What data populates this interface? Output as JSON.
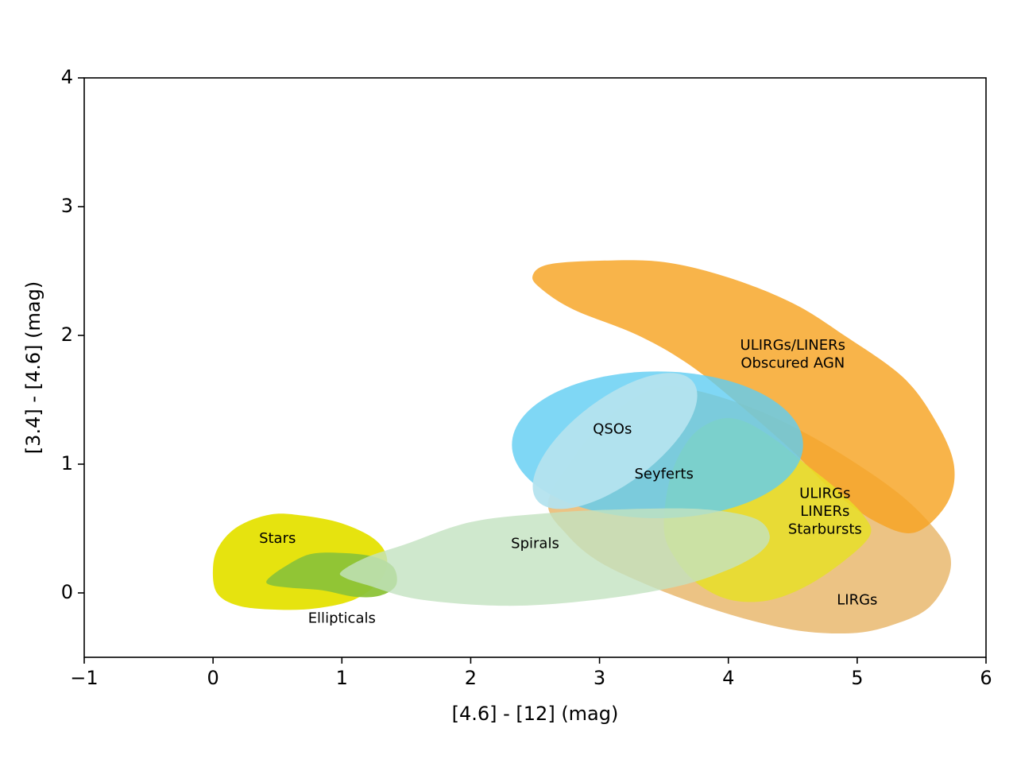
{
  "chart_data": {
    "type": "area",
    "xlabel": "[4.6] - [12] (mag)",
    "ylabel": "[3.4] - [4.6] (mag)",
    "xlim": [
      -1,
      6
    ],
    "ylim": [
      -0.5,
      4
    ],
    "xticks": [
      -1,
      0,
      1,
      2,
      3,
      4,
      5,
      6
    ],
    "yticks": [
      0,
      1,
      2,
      3,
      4
    ],
    "grid": false,
    "regions": [
      {
        "name": "LIRGs",
        "color": "#e9b86e",
        "opacity": 0.85,
        "labels": [
          {
            "text": "LIRGs",
            "x": 5.0,
            "y": -0.06
          }
        ],
        "outline": [
          [
            2.6,
            0.7
          ],
          [
            2.8,
            1.05
          ],
          [
            3.0,
            1.3
          ],
          [
            3.25,
            1.5
          ],
          [
            3.5,
            1.6
          ],
          [
            3.8,
            1.56
          ],
          [
            4.2,
            1.43
          ],
          [
            4.6,
            1.24
          ],
          [
            5.0,
            1.0
          ],
          [
            5.35,
            0.75
          ],
          [
            5.6,
            0.5
          ],
          [
            5.72,
            0.3
          ],
          [
            5.7,
            0.1
          ],
          [
            5.55,
            -0.12
          ],
          [
            5.3,
            -0.24
          ],
          [
            5.0,
            -0.31
          ],
          [
            4.6,
            -0.3
          ],
          [
            4.2,
            -0.22
          ],
          [
            3.8,
            -0.1
          ],
          [
            3.4,
            0.05
          ],
          [
            3.0,
            0.24
          ],
          [
            2.75,
            0.45
          ]
        ]
      },
      {
        "name": "ULIRGs/LINERs Obscured AGN",
        "color": "#f7a422",
        "opacity": 0.82,
        "labels": [
          {
            "text": "ULIRGs/LINERs",
            "x": 4.5,
            "y": 1.92
          },
          {
            "text": "Obscured AGN",
            "x": 4.5,
            "y": 1.78
          }
        ],
        "outline": [
          [
            2.48,
            2.46
          ],
          [
            2.6,
            2.55
          ],
          [
            3.0,
            2.58
          ],
          [
            3.5,
            2.57
          ],
          [
            4.0,
            2.45
          ],
          [
            4.5,
            2.25
          ],
          [
            4.9,
            2.0
          ],
          [
            5.35,
            1.68
          ],
          [
            5.6,
            1.35
          ],
          [
            5.75,
            1.0
          ],
          [
            5.7,
            0.7
          ],
          [
            5.45,
            0.47
          ],
          [
            5.15,
            0.55
          ],
          [
            4.8,
            0.8
          ],
          [
            4.5,
            1.1
          ],
          [
            4.1,
            1.45
          ],
          [
            3.7,
            1.77
          ],
          [
            3.3,
            2.0
          ],
          [
            2.8,
            2.2
          ],
          [
            2.55,
            2.36
          ]
        ]
      },
      {
        "name": "ULIRGs LINERs Starbursts",
        "color": "#e8df27",
        "opacity": 0.85,
        "labels": [
          {
            "text": "ULIRGs",
            "x": 4.75,
            "y": 0.77
          },
          {
            "text": "LINERs",
            "x": 4.75,
            "y": 0.63
          },
          {
            "text": "Starbursts",
            "x": 4.75,
            "y": 0.49
          }
        ],
        "outline": [
          [
            3.5,
            0.5
          ],
          [
            3.55,
            0.9
          ],
          [
            3.7,
            1.2
          ],
          [
            3.9,
            1.34
          ],
          [
            4.1,
            1.34
          ],
          [
            4.35,
            1.2
          ],
          [
            4.6,
            1.0
          ],
          [
            4.85,
            0.8
          ],
          [
            5.05,
            0.6
          ],
          [
            5.1,
            0.45
          ],
          [
            4.9,
            0.25
          ],
          [
            4.6,
            0.05
          ],
          [
            4.3,
            -0.06
          ],
          [
            4.0,
            -0.05
          ],
          [
            3.75,
            0.08
          ],
          [
            3.58,
            0.28
          ]
        ]
      },
      {
        "name": "Seyferts",
        "color": "#5fcdf2",
        "opacity": 0.8,
        "labels": [
          {
            "text": "Seyferts",
            "x": 3.5,
            "y": 0.92
          }
        ],
        "ellipse": {
          "cx": 3.45,
          "cy": 1.15,
          "rx": 1.13,
          "ry": 0.57
        }
      },
      {
        "name": "QSOs",
        "color": "#b4e3ee",
        "opacity": 0.95,
        "labels": [
          {
            "text": "QSOs",
            "x": 3.1,
            "y": 1.27
          }
        ],
        "ellipse": {
          "cx": 3.12,
          "cy": 1.18,
          "rx": 0.76,
          "ry": 0.33,
          "angle_deg": 37
        }
      },
      {
        "name": "Stars",
        "color": "#e6e30f",
        "opacity": 1.0,
        "labels": [
          {
            "text": "Stars",
            "x": 0.5,
            "y": 0.42
          }
        ],
        "outline": [
          [
            0.0,
            0.2
          ],
          [
            0.05,
            0.37
          ],
          [
            0.2,
            0.52
          ],
          [
            0.45,
            0.61
          ],
          [
            0.7,
            0.6
          ],
          [
            1.0,
            0.54
          ],
          [
            1.25,
            0.42
          ],
          [
            1.35,
            0.27
          ],
          [
            1.3,
            0.1
          ],
          [
            1.1,
            -0.05
          ],
          [
            0.8,
            -0.12
          ],
          [
            0.5,
            -0.13
          ],
          [
            0.2,
            -0.1
          ],
          [
            0.03,
            0.0
          ]
        ]
      },
      {
        "name": "Ellipticals",
        "color": "#8cc338",
        "opacity": 0.95,
        "labels": [
          {
            "text": "Ellipticals",
            "x": 1.0,
            "y": -0.2
          }
        ],
        "outline": [
          [
            0.42,
            0.1
          ],
          [
            0.55,
            0.2
          ],
          [
            0.75,
            0.3
          ],
          [
            1.0,
            0.31
          ],
          [
            1.25,
            0.28
          ],
          [
            1.4,
            0.2
          ],
          [
            1.42,
            0.06
          ],
          [
            1.3,
            -0.02
          ],
          [
            1.1,
            -0.03
          ],
          [
            0.85,
            0.02
          ],
          [
            0.6,
            0.04
          ],
          [
            0.45,
            0.06
          ]
        ]
      },
      {
        "name": "Spirals",
        "color": "#c3e2c1",
        "opacity": 0.8,
        "labels": [
          {
            "text": "Spirals",
            "x": 2.5,
            "y": 0.38
          }
        ],
        "outline": [
          [
            1.0,
            0.17
          ],
          [
            1.2,
            0.28
          ],
          [
            1.5,
            0.38
          ],
          [
            2.0,
            0.55
          ],
          [
            2.6,
            0.62
          ],
          [
            3.2,
            0.65
          ],
          [
            3.8,
            0.65
          ],
          [
            4.2,
            0.58
          ],
          [
            4.32,
            0.45
          ],
          [
            4.25,
            0.32
          ],
          [
            4.0,
            0.18
          ],
          [
            3.6,
            0.05
          ],
          [
            3.0,
            -0.05
          ],
          [
            2.3,
            -0.1
          ],
          [
            1.6,
            -0.05
          ],
          [
            1.2,
            0.06
          ],
          [
            1.02,
            0.12
          ]
        ]
      }
    ]
  }
}
